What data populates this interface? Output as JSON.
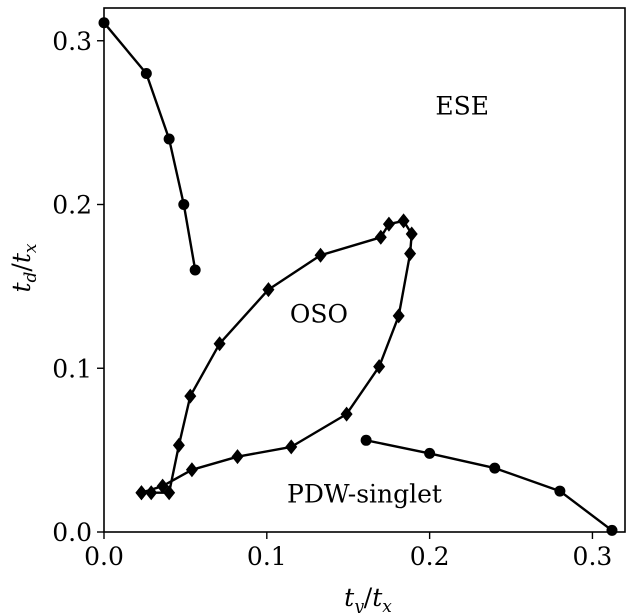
{
  "chart_data": {
    "type": "scatter",
    "xlabel": {
      "base": "t",
      "sub": "y",
      "sep": "/",
      "base2": "t",
      "sub2": "x"
    },
    "ylabel": {
      "base": "t",
      "sub": "d",
      "sep": "/",
      "base2": "t",
      "sub2": "x"
    },
    "xlim": [
      0,
      0.32
    ],
    "ylim": [
      0,
      0.32
    ],
    "xticks": [
      0.0,
      0.1,
      0.2,
      0.3
    ],
    "xtick_labels": [
      "0.0",
      "0.1",
      "0.2",
      "0.3"
    ],
    "yticks": [
      0.0,
      0.1,
      0.2,
      0.3
    ],
    "ytick_labels": [
      "0.0",
      "0.1",
      "0.2",
      "0.3"
    ],
    "grid": false,
    "legend": "none",
    "annotations": [
      {
        "text": "ESE",
        "x": 0.22,
        "y": 0.255
      },
      {
        "text": "OSO",
        "x": 0.132,
        "y": 0.128
      },
      {
        "text": "PDW-singlet",
        "x": 0.16,
        "y": 0.018
      }
    ],
    "series": [
      {
        "marker": "circle",
        "color": "#000000",
        "x": [
          0.0,
          0.026,
          0.04,
          0.049,
          0.056
        ],
        "y": [
          0.311,
          0.28,
          0.24,
          0.2,
          0.16
        ]
      },
      {
        "marker": "circle",
        "color": "#000000",
        "x": [
          0.161,
          0.2,
          0.24,
          0.28,
          0.312
        ],
        "y": [
          0.056,
          0.048,
          0.039,
          0.025,
          0.001
        ]
      },
      {
        "marker": "diamond",
        "color": "#000000",
        "x": [
          0.023,
          0.036,
          0.054,
          0.082,
          0.115,
          0.149,
          0.169,
          0.181,
          0.188,
          0.189,
          0.184,
          0.175,
          0.17,
          0.133,
          0.101,
          0.071,
          0.053,
          0.046,
          0.04,
          0.029,
          0.023
        ],
        "y": [
          0.024,
          0.028,
          0.038,
          0.046,
          0.052,
          0.072,
          0.101,
          0.132,
          0.17,
          0.182,
          0.19,
          0.188,
          0.18,
          0.169,
          0.148,
          0.115,
          0.083,
          0.053,
          0.024,
          0.024,
          0.024
        ]
      }
    ]
  }
}
